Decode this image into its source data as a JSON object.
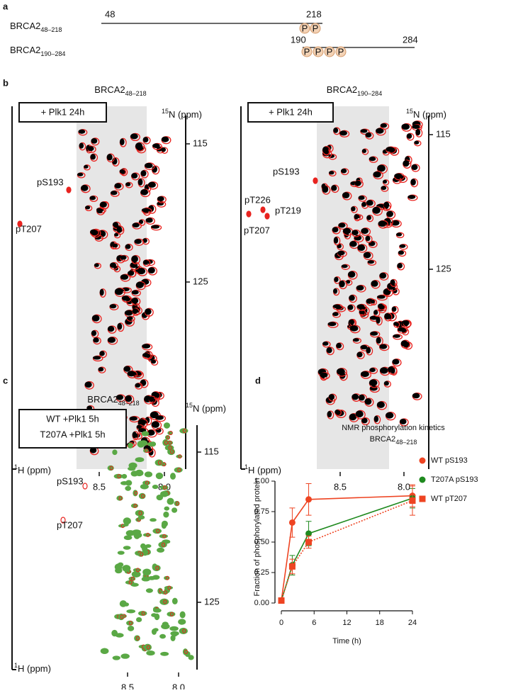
{
  "panels": {
    "a": {
      "label": "a",
      "constructs": [
        {
          "name": "BRCA2",
          "sub": "48–218",
          "start": "48",
          "end": "218"
        },
        {
          "name": "BRCA2",
          "sub": "190–284",
          "start": "190",
          "end": "284"
        }
      ],
      "phospho": "P"
    },
    "b": {
      "label": "b",
      "spectra": [
        {
          "title": "BRCA2",
          "sub": "48–218",
          "conditions": [
            {
              "text": "+ Plk1 24h",
              "color": "#e8231f"
            }
          ],
          "n_axis": {
            "sup": "15",
            "text": "N (ppm)"
          },
          "h_axis": {
            "sup": "1",
            "text": "H (ppm)"
          },
          "n_ticks": [
            "115",
            "125"
          ],
          "h_ticks": [
            "8.5",
            "8.0"
          ],
          "annotations": [
            "pS193",
            "pT207"
          ],
          "annotation_color": "#e8231f"
        },
        {
          "title": "BRCA2",
          "sub": "190–284",
          "conditions": [
            {
              "text": "+ Plk1 24h",
              "color": "#e8231f"
            }
          ],
          "n_axis": {
            "sup": "15",
            "text": "N (ppm)"
          },
          "h_axis": {
            "sup": "1",
            "text": "H (ppm)"
          },
          "n_ticks": [
            "115",
            "125"
          ],
          "h_ticks": [
            "8.5",
            "8.0"
          ],
          "annotations": [
            "pS193",
            "pT226",
            "pT219",
            "pT207"
          ],
          "annotation_color": "#e8231f"
        }
      ]
    },
    "c": {
      "label": "c",
      "spectra": [
        {
          "title": "BRCA2",
          "sub": "48–218",
          "conditions": [
            {
              "text": "WT +Plk1 5h",
              "color": "#e8231f"
            },
            {
              "text": "T207A +Plk1 5h",
              "color": "#2e9e3e"
            }
          ],
          "n_axis": {
            "sup": "15",
            "text": "N (ppm)"
          },
          "h_axis": {
            "sup": "1",
            "text": "H (ppm)"
          },
          "n_ticks": [
            "115",
            "125"
          ],
          "h_ticks": [
            "8.5",
            "8.0"
          ],
          "annotations": [
            "pS193",
            "pT207"
          ],
          "annotation_color": "#111111"
        }
      ]
    }
  },
  "chart_data": {
    "type": "line",
    "panel_label": "d",
    "title": "NMR phosphorylation kinetics",
    "subtitle": "BRCA2",
    "subtitle_sub": "48–218",
    "x_label": "Time (h)",
    "y_label": "Fraction of phosphorylated protein",
    "x": [
      0,
      2,
      5,
      24
    ],
    "xlim": [
      0,
      24
    ],
    "xticks": [
      0,
      6,
      12,
      18,
      24
    ],
    "ylim": [
      0,
      1
    ],
    "yticks": [
      {
        "value": 0,
        "label": "0.00"
      },
      {
        "value": 0.25,
        "label": "0.25"
      },
      {
        "value": 0.5,
        "label": "0.50"
      },
      {
        "value": 0.75,
        "label": "0.75"
      },
      {
        "value": 1,
        "label": "1.00"
      }
    ],
    "series": [
      {
        "name": "WT pS193",
        "color": "#ee4422",
        "marker": "circle",
        "dashed": false,
        "values": [
          0.02,
          0.66,
          0.85,
          0.88
        ],
        "errors": [
          0.02,
          0.12,
          0.13,
          0.09
        ]
      },
      {
        "name": "T207A pS193",
        "color": "#1f8a1f",
        "marker": "circle",
        "dashed": false,
        "values": [
          0.02,
          0.31,
          0.57,
          0.86
        ],
        "errors": [
          0.02,
          0.08,
          0.1,
          0.08
        ]
      },
      {
        "name": "WT pT207",
        "color": "#ee4422",
        "marker": "square",
        "dashed": true,
        "values": [
          0.02,
          0.3,
          0.5,
          0.84
        ],
        "errors": [
          0.02,
          0.06,
          0.05,
          0.12
        ]
      }
    ]
  }
}
